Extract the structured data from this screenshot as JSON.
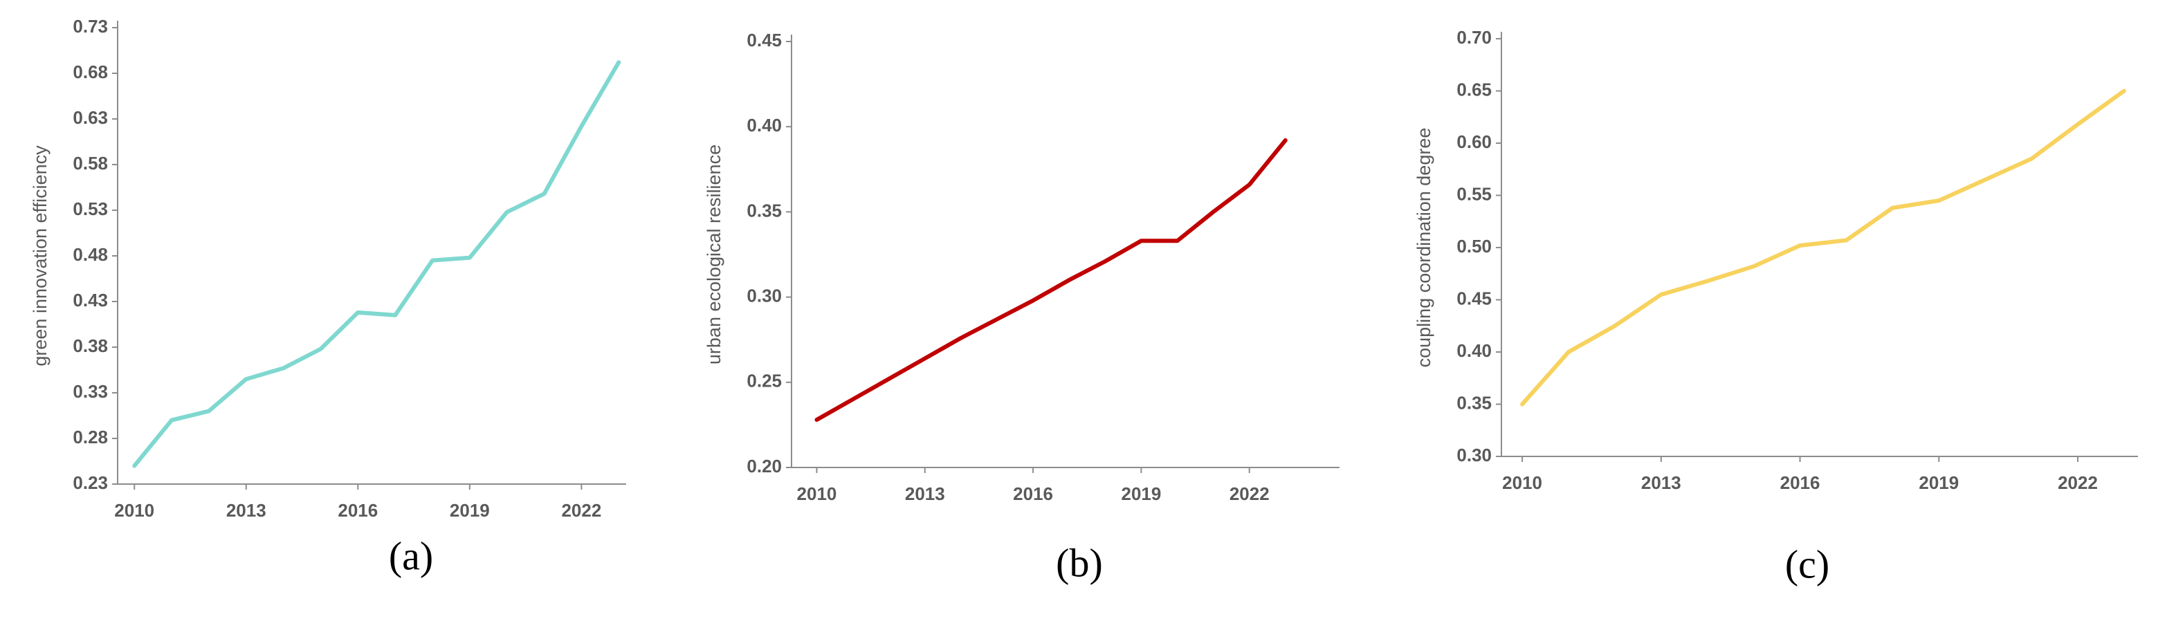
{
  "chart_data": [
    {
      "type": "line",
      "caption": "(a)",
      "ylabel": "green innovation efficiency",
      "color": "#7fd8d0",
      "x": [
        2010,
        2011,
        2012,
        2013,
        2014,
        2015,
        2016,
        2017,
        2018,
        2019,
        2020,
        2021,
        2022,
        2023
      ],
      "values": [
        0.25,
        0.3,
        0.31,
        0.345,
        0.357,
        0.378,
        0.418,
        0.415,
        0.475,
        0.478,
        0.528,
        0.548,
        0.622,
        0.692
      ],
      "xlim": [
        2009.55,
        2023.2
      ],
      "xticks": [
        2010,
        2013,
        2016,
        2019,
        2022
      ],
      "ylim": [
        0.23,
        0.73
      ],
      "yticks": [
        0.23,
        0.28,
        0.33,
        0.38,
        0.43,
        0.48,
        0.53,
        0.58,
        0.63,
        0.68,
        0.73
      ]
    },
    {
      "type": "line",
      "caption": "(b)",
      "ylabel": "urban ecological resilience",
      "color": "#c00000",
      "x": [
        2010,
        2011,
        2012,
        2013,
        2014,
        2015,
        2016,
        2017,
        2018,
        2019,
        2020,
        2021,
        2022,
        2023
      ],
      "values": [
        0.228,
        0.24,
        0.252,
        0.264,
        0.276,
        0.287,
        0.298,
        0.31,
        0.321,
        0.333,
        0.333,
        0.35,
        0.366,
        0.392
      ],
      "xlim": [
        2009.3,
        2024.5
      ],
      "xticks": [
        2010,
        2013,
        2016,
        2019,
        2022
      ],
      "ylim": [
        0.2,
        0.45
      ],
      "yticks": [
        {
          "value": 0.2,
          "label": "0.20"
        },
        0.25,
        {
          "value": 0.3,
          "label": "0.30"
        },
        0.35,
        {
          "value": 0.4,
          "label": "0.40"
        },
        0.45
      ]
    },
    {
      "type": "line",
      "caption": "(c)",
      "ylabel": "coupling coordination degree",
      "color": "#f7d25e",
      "x": [
        2010,
        2011,
        2012,
        2013,
        2014,
        2015,
        2016,
        2017,
        2018,
        2019,
        2020,
        2021,
        2022,
        2023
      ],
      "values": [
        0.35,
        0.4,
        0.425,
        0.455,
        0.468,
        0.482,
        0.502,
        0.507,
        0.538,
        0.545,
        0.565,
        0.585,
        0.618,
        0.65
      ],
      "xlim": [
        2009.55,
        2023.3
      ],
      "xticks": [
        2010,
        2013,
        2016,
        2019,
        2022
      ],
      "ylim": [
        0.3,
        0.7
      ],
      "yticks": [
        {
          "value": 0.3,
          "label": "0.30"
        },
        0.35,
        {
          "value": 0.4,
          "label": "0.40"
        },
        0.45,
        {
          "value": 0.5,
          "label": "0.50"
        },
        0.55,
        {
          "value": 0.6,
          "label": "0.60"
        },
        0.65,
        {
          "value": 0.7,
          "label": "0.70"
        }
      ]
    }
  ]
}
